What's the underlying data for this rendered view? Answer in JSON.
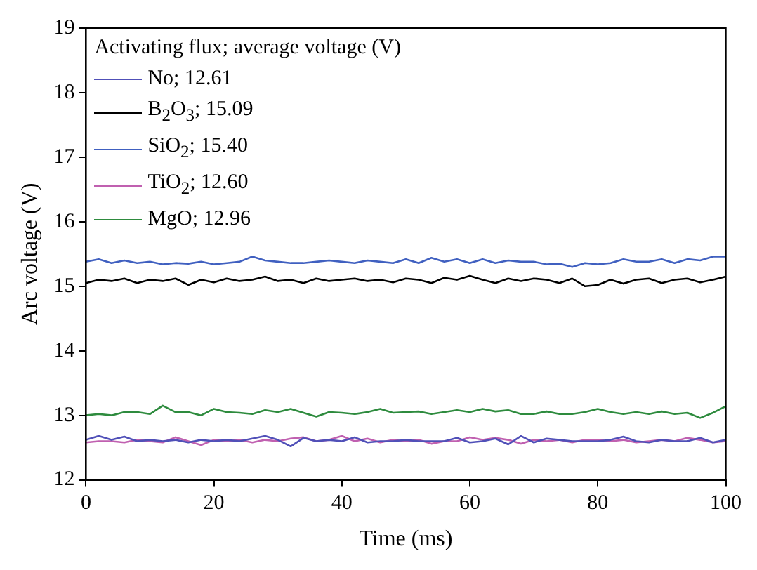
{
  "chart_data": {
    "type": "line",
    "xlabel": "Time (ms)",
    "ylabel": "Arc voltage (V)",
    "legend_title": "Activating flux; average voltage (V)",
    "legend": "top left",
    "grid": false,
    "marker": "none",
    "line_style": "solid",
    "xlim": [
      0,
      100
    ],
    "ylim": [
      12,
      19
    ],
    "xticks": [
      0,
      20,
      40,
      60,
      80,
      100
    ],
    "yticks": [
      12,
      13,
      14,
      15,
      16,
      17,
      18,
      19
    ],
    "x": [
      0,
      2,
      4,
      6,
      8,
      10,
      12,
      14,
      16,
      18,
      20,
      22,
      24,
      26,
      28,
      30,
      32,
      34,
      36,
      38,
      40,
      42,
      44,
      46,
      48,
      50,
      52,
      54,
      56,
      58,
      60,
      62,
      64,
      66,
      68,
      70,
      72,
      74,
      76,
      78,
      80,
      82,
      84,
      86,
      88,
      90,
      92,
      94,
      96,
      98,
      100
    ],
    "series": [
      {
        "name": "No; 12.61",
        "color": "#5050b8",
        "values": [
          12.62,
          12.68,
          12.62,
          12.67,
          12.6,
          12.62,
          12.6,
          12.62,
          12.58,
          12.62,
          12.6,
          12.62,
          12.6,
          12.64,
          12.68,
          12.62,
          12.52,
          12.65,
          12.6,
          12.62,
          12.6,
          12.66,
          12.58,
          12.6,
          12.6,
          12.62,
          12.6,
          12.6,
          12.6,
          12.65,
          12.58,
          12.6,
          12.64,
          12.55,
          12.68,
          12.58,
          12.64,
          12.62,
          12.6,
          12.6,
          12.6,
          12.62,
          12.67,
          12.6,
          12.58,
          12.62,
          12.6,
          12.6,
          12.65,
          12.58,
          12.62
        ]
      },
      {
        "name": "B$_{2}$O$_{3}$; 15.09",
        "color": "#000000",
        "values": [
          15.05,
          15.1,
          15.08,
          15.12,
          15.05,
          15.1,
          15.08,
          15.12,
          15.02,
          15.1,
          15.06,
          15.12,
          15.08,
          15.1,
          15.15,
          15.08,
          15.1,
          15.05,
          15.12,
          15.08,
          15.1,
          15.12,
          15.08,
          15.1,
          15.06,
          15.12,
          15.1,
          15.05,
          15.13,
          15.1,
          15.16,
          15.1,
          15.05,
          15.12,
          15.08,
          15.12,
          15.1,
          15.05,
          15.12,
          15.0,
          15.02,
          15.1,
          15.04,
          15.1,
          15.12,
          15.05,
          15.1,
          15.12,
          15.06,
          15.1,
          15.15
        ]
      },
      {
        "name": "SiO$_{2}$; 15.40",
        "color": "#4060c0",
        "values": [
          15.38,
          15.42,
          15.36,
          15.4,
          15.36,
          15.38,
          15.34,
          15.36,
          15.35,
          15.38,
          15.34,
          15.36,
          15.38,
          15.46,
          15.4,
          15.38,
          15.36,
          15.36,
          15.38,
          15.4,
          15.38,
          15.36,
          15.4,
          15.38,
          15.36,
          15.42,
          15.36,
          15.44,
          15.38,
          15.42,
          15.36,
          15.42,
          15.36,
          15.4,
          15.38,
          15.38,
          15.34,
          15.35,
          15.3,
          15.36,
          15.34,
          15.36,
          15.42,
          15.38,
          15.38,
          15.42,
          15.36,
          15.42,
          15.4,
          15.46,
          15.46
        ]
      },
      {
        "name": "TiO$_{2}$; 12.60",
        "color": "#c060b0",
        "values": [
          12.58,
          12.6,
          12.6,
          12.58,
          12.62,
          12.6,
          12.58,
          12.66,
          12.6,
          12.54,
          12.62,
          12.6,
          12.62,
          12.58,
          12.62,
          12.6,
          12.64,
          12.66,
          12.6,
          12.62,
          12.68,
          12.6,
          12.64,
          12.58,
          12.62,
          12.6,
          12.62,
          12.56,
          12.6,
          12.6,
          12.66,
          12.62,
          12.65,
          12.62,
          12.56,
          12.62,
          12.6,
          12.62,
          12.58,
          12.62,
          12.62,
          12.6,
          12.62,
          12.58,
          12.6,
          12.62,
          12.6,
          12.65,
          12.62,
          12.58,
          12.6
        ]
      },
      {
        "name": "MgO; 12.96",
        "color": "#2e8b3e",
        "values": [
          13.0,
          13.02,
          13.0,
          13.05,
          13.05,
          13.02,
          13.15,
          13.05,
          13.05,
          13.0,
          13.1,
          13.05,
          13.04,
          13.02,
          13.08,
          13.05,
          13.1,
          13.04,
          12.98,
          13.05,
          13.04,
          13.02,
          13.05,
          13.1,
          13.04,
          13.05,
          13.06,
          13.02,
          13.05,
          13.08,
          13.05,
          13.1,
          13.06,
          13.08,
          13.02,
          13.02,
          13.06,
          13.02,
          13.02,
          13.05,
          13.1,
          13.05,
          13.02,
          13.05,
          13.02,
          13.06,
          13.02,
          13.04,
          12.96,
          13.04,
          13.14
        ]
      }
    ]
  }
}
